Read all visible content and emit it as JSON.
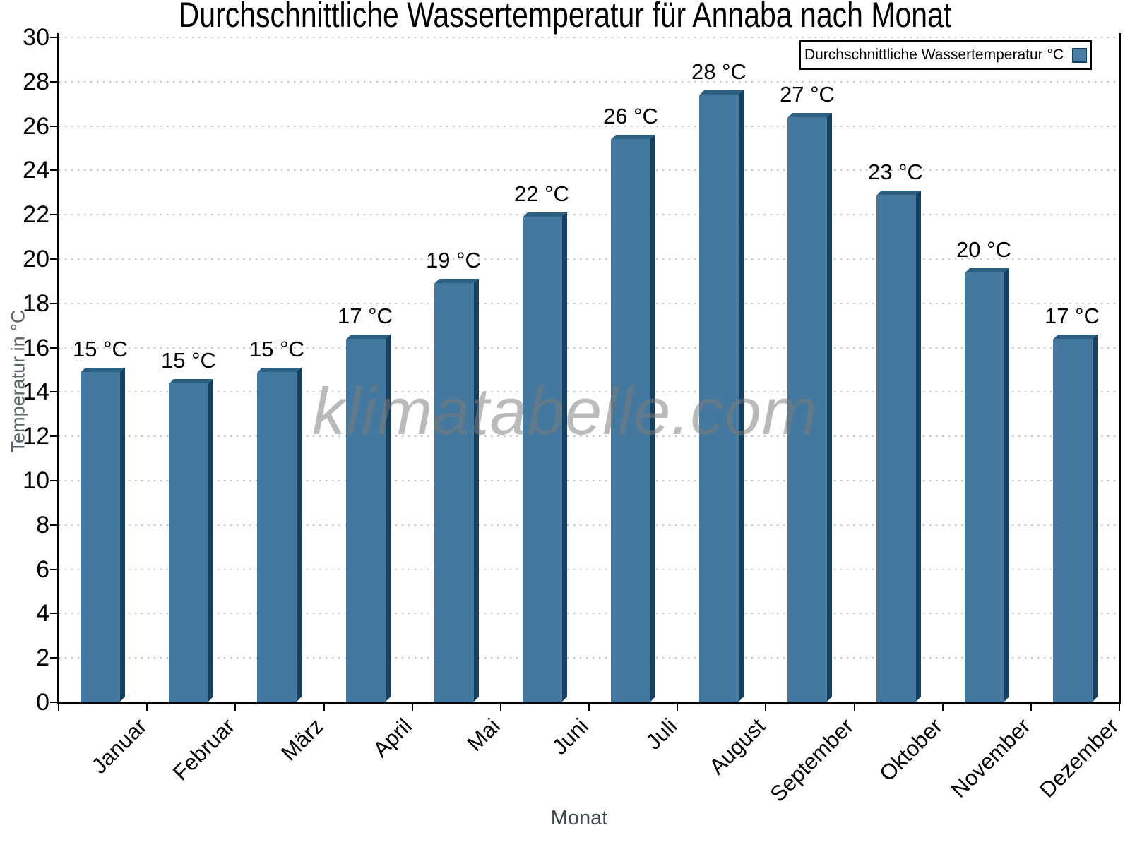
{
  "chart_data": {
    "type": "bar",
    "title": "Durchschnittliche Wassertemperatur für Annaba nach Monat",
    "xlabel": "Monat",
    "ylabel": "Temperatur in °C",
    "categories": [
      "Januar",
      "Februar",
      "März",
      "April",
      "Mai",
      "Juni",
      "Juli",
      "August",
      "September",
      "Oktober",
      "November",
      "Dezember"
    ],
    "values": [
      15.1,
      14.6,
      15.1,
      16.6,
      19.1,
      22.1,
      25.6,
      27.6,
      26.6,
      23.1,
      19.6,
      16.6
    ],
    "value_labels": [
      "15 °C",
      "15 °C",
      "15 °C",
      "17 °C",
      "19 °C",
      "22 °C",
      "26 °C",
      "28 °C",
      "27 °C",
      "23 °C",
      "20 °C",
      "17 °C"
    ],
    "ylim": [
      0,
      30
    ],
    "ytick_step": 2,
    "grid": "horizontal-dotted",
    "legend": {
      "label": "Durchschnittliche Wassertemperatur °C",
      "position": "top-right"
    },
    "watermark": "klimatabelle.com",
    "colors": {
      "bar_face": "#44789e",
      "bar_right_edge": "#16405f",
      "bar_top_edge": "#2d5f80",
      "gridline": "#c9c9c9",
      "axis": "#000000",
      "axis_title_gray": "#5b646d",
      "watermark_gray": "#7a7a7a"
    }
  }
}
